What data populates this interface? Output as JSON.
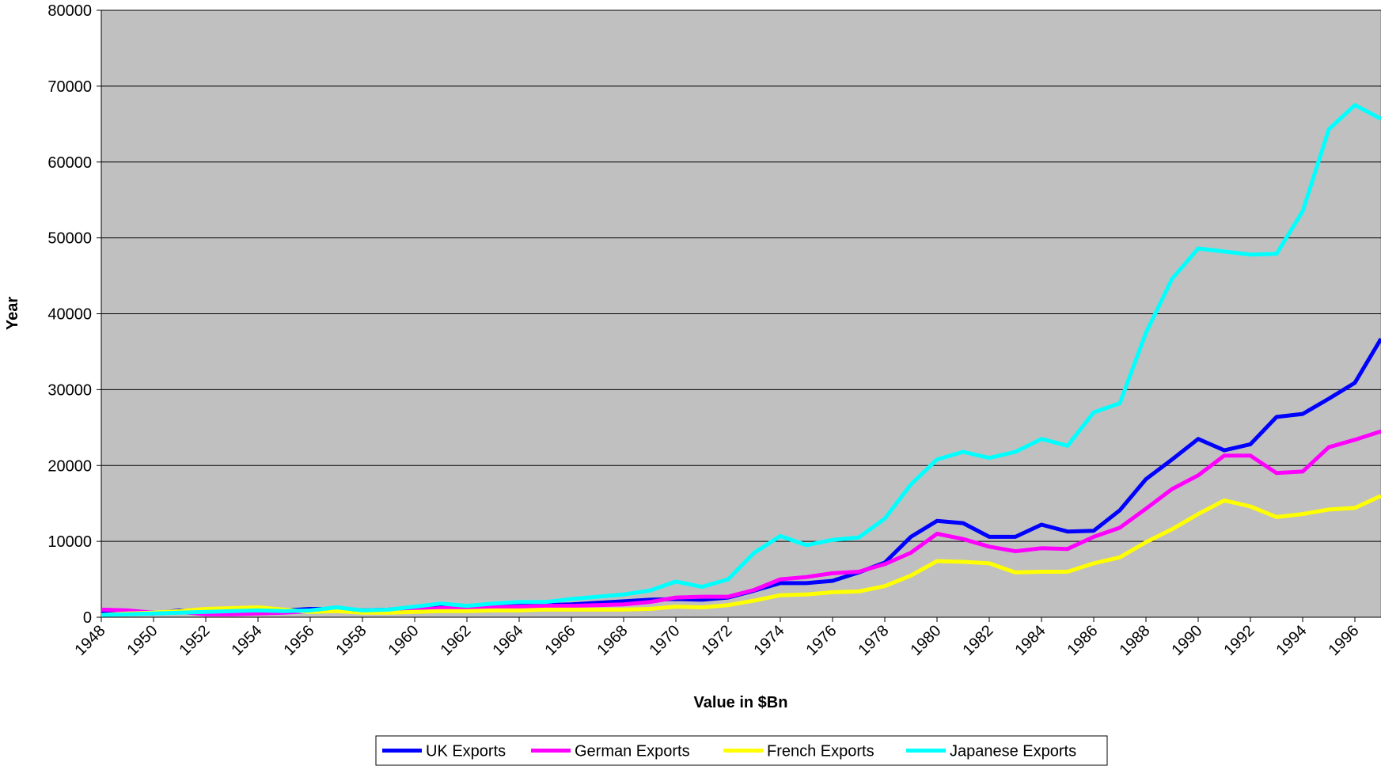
{
  "chart_data": {
    "type": "line",
    "x_label": "Value in $Bn",
    "y_label": "Year",
    "x": [
      1948,
      1949,
      1950,
      1951,
      1952,
      1953,
      1954,
      1955,
      1956,
      1957,
      1958,
      1959,
      1960,
      1961,
      1962,
      1963,
      1964,
      1965,
      1966,
      1967,
      1968,
      1969,
      1970,
      1971,
      1972,
      1973,
      1974,
      1975,
      1976,
      1977,
      1978,
      1979,
      1980,
      1981,
      1982,
      1983,
      1984,
      1985,
      1986,
      1987,
      1988,
      1989,
      1990,
      1991,
      1992,
      1993,
      1994,
      1995,
      1996,
      1997
    ],
    "series": [
      {
        "name": "UK Exports",
        "color": "#0000ff",
        "values": [
          500,
          600,
          500,
          900,
          700,
          800,
          800,
          900,
          1100,
          1100,
          900,
          1000,
          1300,
          1400,
          1300,
          1400,
          1500,
          1600,
          1700,
          1900,
          2100,
          2300,
          2400,
          2300,
          2600,
          3500,
          4500,
          4500,
          4800,
          5900,
          7200,
          10600,
          12700,
          12400,
          10600,
          10600,
          12200,
          11300,
          11400,
          14100,
          18200,
          20800,
          23500,
          22000,
          22800,
          26400,
          26800,
          28800,
          30900,
          36700
        ]
      },
      {
        "name": "German Exports",
        "color": "#ff00ff",
        "values": [
          1000,
          900,
          600,
          700,
          400,
          400,
          500,
          600,
          800,
          1000,
          800,
          900,
          1000,
          1200,
          1200,
          1300,
          1400,
          1500,
          1500,
          1600,
          1700,
          2000,
          2600,
          2700,
          2700,
          3600,
          5000,
          5300,
          5800,
          6000,
          7000,
          8500,
          11000,
          10300,
          9300,
          8700,
          9100,
          9000,
          10600,
          11800,
          14300,
          16900,
          18700,
          21300,
          21300,
          19000,
          19200,
          22400,
          23400,
          24500
        ]
      },
      {
        "name": "French Exports",
        "color": "#ffff00",
        "values": [
          300,
          500,
          600,
          800,
          1100,
          1200,
          1300,
          1000,
          700,
          800,
          600,
          600,
          700,
          800,
          800,
          900,
          900,
          1000,
          1000,
          1000,
          1000,
          1100,
          1400,
          1300,
          1600,
          2200,
          2900,
          3000,
          3300,
          3400,
          4100,
          5500,
          7400,
          7300,
          7100,
          5900,
          6000,
          6000,
          7100,
          7900,
          9900,
          11600,
          13600,
          15400,
          14600,
          13200,
          13600,
          14200,
          14400,
          16000
        ]
      },
      {
        "name": "Japanese Exports",
        "color": "#00ffff",
        "values": [
          300,
          400,
          500,
          600,
          700,
          800,
          900,
          800,
          900,
          1300,
          900,
          1000,
          1400,
          1800,
          1500,
          1800,
          2000,
          2000,
          2400,
          2700,
          3000,
          3500,
          4700,
          4000,
          5000,
          8500,
          10700,
          9500,
          10200,
          10500,
          13000,
          17500,
          20800,
          21800,
          21000,
          21800,
          23500,
          22600,
          27000,
          28200,
          37500,
          44600,
          48600,
          48200,
          47800,
          47900,
          53500,
          64300,
          67500,
          65700
        ]
      }
    ],
    "xlim": [
      1948,
      1997
    ],
    "xticks": [
      1948,
      1950,
      1952,
      1954,
      1956,
      1958,
      1960,
      1962,
      1964,
      1966,
      1968,
      1970,
      1972,
      1974,
      1976,
      1978,
      1980,
      1982,
      1984,
      1986,
      1988,
      1990,
      1992,
      1994,
      1996
    ],
    "ylim": [
      0,
      80000
    ],
    "yticks": [
      0,
      10000,
      20000,
      30000,
      40000,
      50000,
      60000,
      70000,
      80000
    ],
    "grid": true,
    "plot_background": "#c0c0c0",
    "legend": "bottom"
  }
}
